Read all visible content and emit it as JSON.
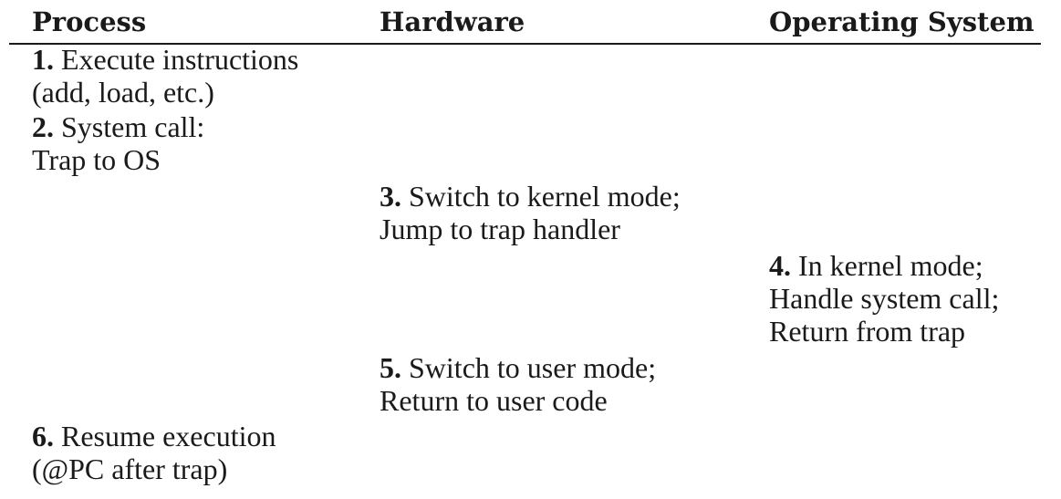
{
  "header": {
    "process": "Process",
    "hardware": "Hardware",
    "os": "Operating System"
  },
  "steps": [
    {
      "column": "Process",
      "number": "1.",
      "lines": [
        "Execute instructions",
        "(add, load, etc.)"
      ]
    },
    {
      "column": "Process",
      "number": "2.",
      "lines": [
        "System call:",
        "Trap to OS"
      ]
    },
    {
      "column": "Hardware",
      "number": "3.",
      "lines": [
        "Switch to kernel mode;",
        "Jump to trap handler"
      ]
    },
    {
      "column": "Operating System",
      "number": "4.",
      "lines": [
        "In kernel mode;",
        "Handle system call;",
        "Return from trap"
      ]
    },
    {
      "column": "Hardware",
      "number": "5.",
      "lines": [
        "Switch to user mode;",
        "Return to user code"
      ]
    },
    {
      "column": "Process",
      "number": "6.",
      "lines": [
        "Resume execution",
        "(@PC after trap)"
      ]
    }
  ]
}
